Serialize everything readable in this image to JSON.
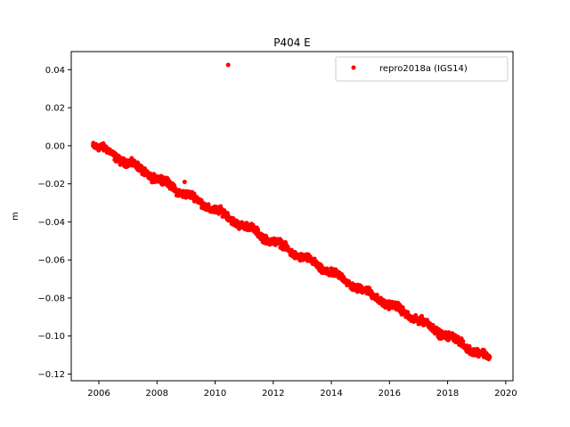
{
  "chart_data": {
    "type": "scatter",
    "title": "P404 E",
    "xlabel": "",
    "ylabel": "m",
    "xlim": [
      2005.05,
      2020.25
    ],
    "ylim": [
      -0.1235,
      0.0495
    ],
    "x_ticks": [
      2006,
      2008,
      2010,
      2012,
      2014,
      2016,
      2018,
      2020
    ],
    "x_tick_labels": [
      "2006",
      "2008",
      "2010",
      "2012",
      "2014",
      "2016",
      "2018",
      "2020"
    ],
    "y_ticks": [
      0.04,
      0.02,
      0.0,
      -0.02,
      -0.04,
      -0.06,
      -0.08,
      -0.1,
      -0.12
    ],
    "y_tick_labels": [
      "0.04",
      "0.02",
      "0.00",
      "−0.02",
      "−0.04",
      "−0.06",
      "−0.08",
      "−0.10",
      "−0.12"
    ],
    "grid": false,
    "legend": {
      "placement": "top-right",
      "entries": [
        "repro2018a (IGS14)"
      ]
    },
    "series": [
      {
        "name": "repro2018a (IGS14)",
        "color": "#ff0000",
        "marker": "dot",
        "trend": {
          "x_start": 2005.8,
          "x_end": 2019.45,
          "y_start": 0.001,
          "y_end": -0.112,
          "spread": 0.0032
        },
        "outliers": [
          {
            "x": 2010.45,
            "y": 0.0425
          },
          {
            "x": 2008.95,
            "y": -0.019
          },
          {
            "x": 2015.4,
            "y": -0.08
          }
        ]
      }
    ]
  }
}
